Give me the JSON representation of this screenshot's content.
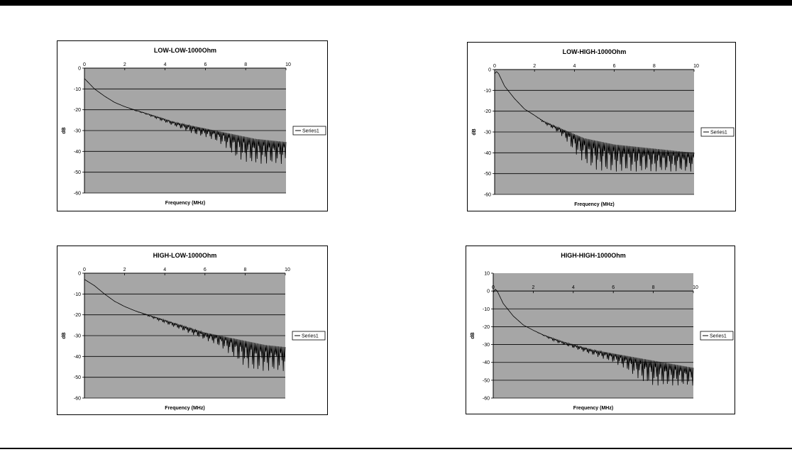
{
  "colors": {
    "plot_bg": "#a6a6a6",
    "grid": "#000000",
    "series": "#000000",
    "frame": "#000000"
  },
  "chart_data": [
    {
      "type": "line",
      "title": "LOW-LOW-1000Ohm",
      "xlabel": "Frequency (MHz)",
      "ylabel": "dB",
      "xlim": [
        0,
        10
      ],
      "ylim": [
        -60,
        0
      ],
      "xticks": [
        "0",
        "2",
        "4",
        "6",
        "8",
        "10"
      ],
      "yticks": [
        "0",
        "-10",
        "-20",
        "-30",
        "-40",
        "-50",
        "-60"
      ],
      "grid": "horizontal",
      "legend_position": "right",
      "series": [
        {
          "name": "Series1",
          "x": [
            0,
            0.5,
            1,
            1.5,
            2,
            2.5,
            3,
            3.5,
            4,
            4.5,
            5,
            5.5,
            6,
            6.5,
            7,
            7.5,
            8,
            8.5,
            9,
            9.5,
            10
          ],
          "y": [
            -5,
            -10,
            -13.5,
            -16.5,
            -18.5,
            -20,
            -21.5,
            -23,
            -24.5,
            -26,
            -27,
            -28,
            -29,
            -30,
            -31,
            -32,
            -33,
            -34,
            -34.5,
            -35,
            -35.5
          ],
          "y_min": [
            -5,
            -10,
            -13.5,
            -16.5,
            -18.5,
            -20.5,
            -22,
            -24,
            -26,
            -28,
            -30,
            -32,
            -33,
            -35,
            -38,
            -43,
            -45,
            -46,
            -46,
            -46,
            -46
          ]
        }
      ]
    },
    {
      "type": "line",
      "title": "LOW-HIGH-1000Ohm",
      "xlabel": "Frequency (MHz)",
      "ylabel": "dB",
      "xlim": [
        0,
        10
      ],
      "ylim": [
        -60,
        0
      ],
      "xticks": [
        "0",
        "2",
        "4",
        "6",
        "8",
        "10"
      ],
      "yticks": [
        "0",
        "-10",
        "-20",
        "-30",
        "-40",
        "-50",
        "-60"
      ],
      "grid": "horizontal",
      "legend_position": "right",
      "series": [
        {
          "name": "Series1",
          "x": [
            0,
            0.1,
            0.2,
            0.5,
            1,
            1.5,
            2,
            2.5,
            3,
            3.5,
            4,
            4.5,
            5,
            5.5,
            6,
            6.5,
            7,
            7.5,
            8,
            8.5,
            9,
            9.5,
            10
          ],
          "y": [
            -2,
            -1,
            -2,
            -8,
            -14,
            -19,
            -22,
            -25,
            -27,
            -29,
            -31,
            -33,
            -34,
            -35,
            -36,
            -36.5,
            -37,
            -37.5,
            -38,
            -38.5,
            -39,
            -39.5,
            -40
          ],
          "y_min": [
            -2,
            -1,
            -2,
            -8,
            -14,
            -19,
            -22,
            -26,
            -29,
            -33,
            -40,
            -45,
            -48,
            -49,
            -49,
            -49,
            -49,
            -49,
            -49,
            -49,
            -49,
            -49,
            -49
          ]
        }
      ]
    },
    {
      "type": "line",
      "title": "HIGH-LOW-1000Ohm",
      "xlabel": "Frequency (MHz)",
      "ylabel": "dB",
      "xlim": [
        0,
        10
      ],
      "ylim": [
        -60,
        0
      ],
      "xticks": [
        "0",
        "2",
        "4",
        "6",
        "8",
        "10"
      ],
      "yticks": [
        "0",
        "-10",
        "-20",
        "-30",
        "-40",
        "-50",
        "-60"
      ],
      "grid": "horizontal",
      "legend_position": "right",
      "series": [
        {
          "name": "Series1",
          "x": [
            0,
            0.5,
            1,
            1.5,
            2,
            2.5,
            3,
            3.5,
            4,
            4.5,
            5,
            5.5,
            6,
            6.5,
            7,
            7.5,
            8,
            8.5,
            9,
            9.5,
            10
          ],
          "y": [
            -3,
            -6,
            -10,
            -13.5,
            -16,
            -18,
            -19.5,
            -21,
            -22.5,
            -24,
            -25.5,
            -27,
            -28.5,
            -29.5,
            -30.5,
            -31.5,
            -32.5,
            -33.5,
            -34.5,
            -35,
            -35.5
          ],
          "y_min": [
            -3,
            -6,
            -10,
            -13.5,
            -16,
            -18,
            -20,
            -22,
            -24,
            -26,
            -28,
            -30,
            -32,
            -34,
            -37,
            -41,
            -45,
            -47,
            -47,
            -47,
            -47
          ]
        }
      ]
    },
    {
      "type": "line",
      "title": "HIGH-HIGH-1000Ohm",
      "xlabel": "Frequency (MHz)",
      "ylabel": "dB",
      "xlim": [
        0,
        10
      ],
      "ylim": [
        -60,
        10
      ],
      "xticks": [
        "0",
        "2",
        "4",
        "6",
        "8",
        "10"
      ],
      "yticks": [
        "10",
        "0",
        "-10",
        "-20",
        "-30",
        "-40",
        "-50",
        "-60"
      ],
      "grid": "horizontal",
      "legend_position": "right",
      "series": [
        {
          "name": "Series1",
          "x": [
            0,
            0.1,
            0.2,
            0.5,
            1,
            1.5,
            2,
            2.5,
            3,
            3.5,
            4,
            4.5,
            5,
            5.5,
            6,
            6.5,
            7,
            7.5,
            8,
            8.5,
            9,
            9.5,
            10
          ],
          "y": [
            -1,
            1,
            0,
            -7,
            -14,
            -19,
            -22,
            -24.5,
            -26.5,
            -28.5,
            -30,
            -31.5,
            -33,
            -34,
            -35,
            -36,
            -37,
            -38,
            -39,
            -40,
            -41,
            -42,
            -43
          ],
          "y_min": [
            -1,
            1,
            0,
            -7,
            -14,
            -19,
            -22,
            -25,
            -28,
            -30,
            -32,
            -34,
            -36,
            -38,
            -40,
            -43,
            -47,
            -51,
            -53,
            -53,
            -53,
            -53,
            -53
          ]
        }
      ]
    }
  ]
}
